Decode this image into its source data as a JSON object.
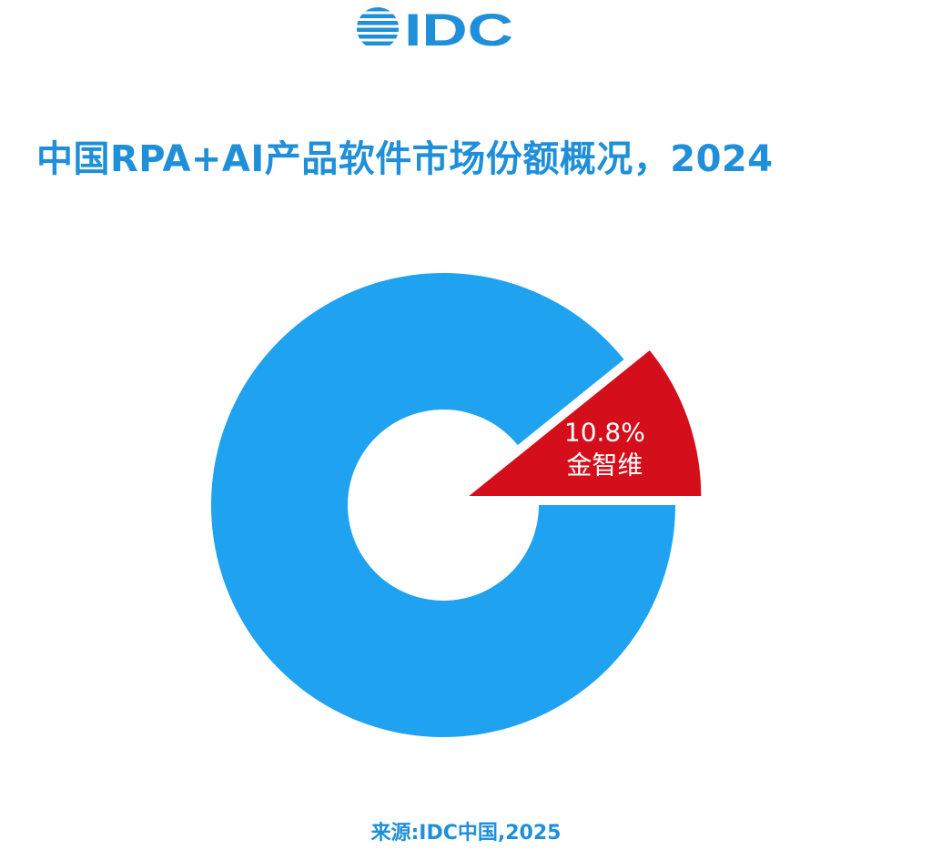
{
  "brand": {
    "logo_text": "IDC",
    "color": "#1e8fd8"
  },
  "title": "中国RPA+AI产品软件市场份额概况，2024",
  "source": "来源:IDC中国,2025",
  "chart_data": {
    "type": "pie",
    "style": "donut",
    "title": "中国RPA+AI产品软件市场份额概况，2024",
    "slices": [
      {
        "label": "金智维",
        "value": 10.8,
        "value_label": "10.8%",
        "color": "#d40f1b",
        "exploded": true
      },
      {
        "label": "",
        "value": 89.2,
        "value_label": "",
        "color": "#1fa2f0",
        "exploded": false
      }
    ],
    "legend": "none"
  }
}
